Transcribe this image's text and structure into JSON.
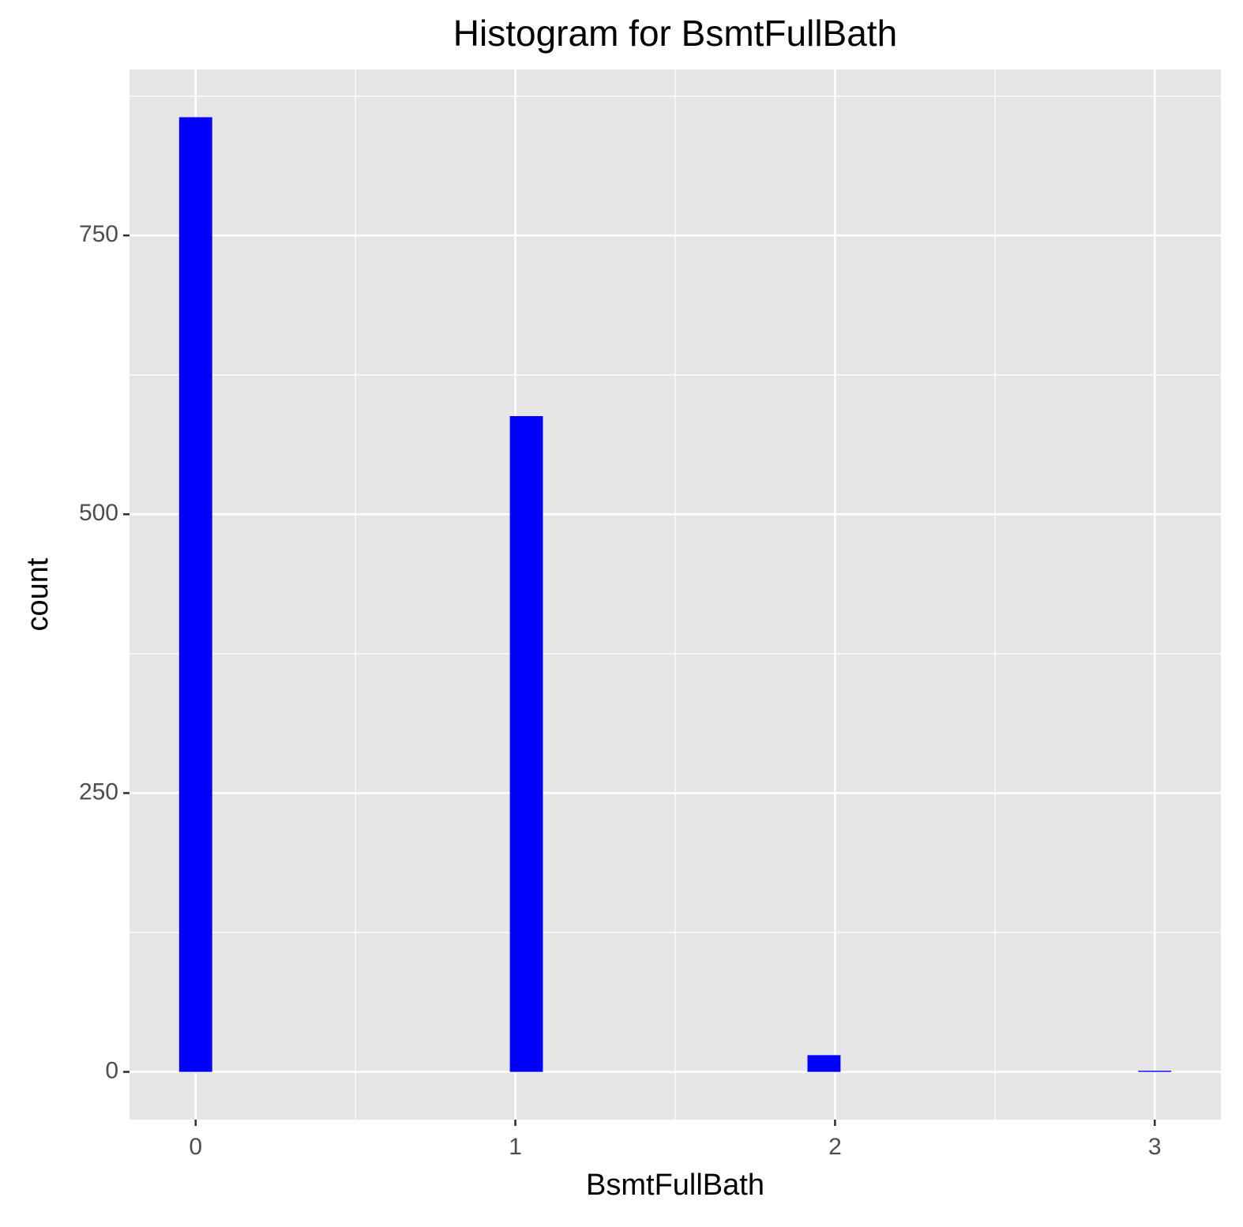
{
  "chart_data": {
    "type": "histogram",
    "title": "Histogram for BsmtFullBath",
    "x_label": "BsmtFullBath",
    "y_label": "count",
    "bins": [
      -0.0517,
      0.0517,
      0.1552,
      0.2586,
      0.3621,
      0.4655,
      0.569,
      0.6724,
      0.7759,
      0.8793,
      0.9828,
      1.0862,
      1.1897,
      1.2931,
      1.3966,
      1.5,
      1.6034,
      1.7069,
      1.8103,
      1.9138,
      2.0172,
      2.1207,
      2.2241,
      2.3276,
      2.431,
      2.5345,
      2.6379,
      2.7414,
      2.8448,
      2.9483,
      3.0517
    ],
    "values": [
      856,
      0,
      0,
      0,
      0,
      0,
      0,
      0,
      0,
      0,
      588,
      0,
      0,
      0,
      0,
      0,
      0,
      0,
      0,
      15,
      0,
      0,
      0,
      0,
      0,
      0,
      0,
      0,
      0,
      1
    ],
    "color": "#0000ff",
    "xlim": [
      -0.2069,
      3.2069
    ],
    "xticks": [
      0,
      1,
      2,
      3
    ],
    "xminor": [
      0.5,
      1.5,
      2.5
    ],
    "ylim": [
      -42.8,
      898.8
    ],
    "yticks": [
      0,
      250,
      500,
      750
    ],
    "yminor": [
      125,
      375,
      625,
      875
    ],
    "grid": true
  }
}
